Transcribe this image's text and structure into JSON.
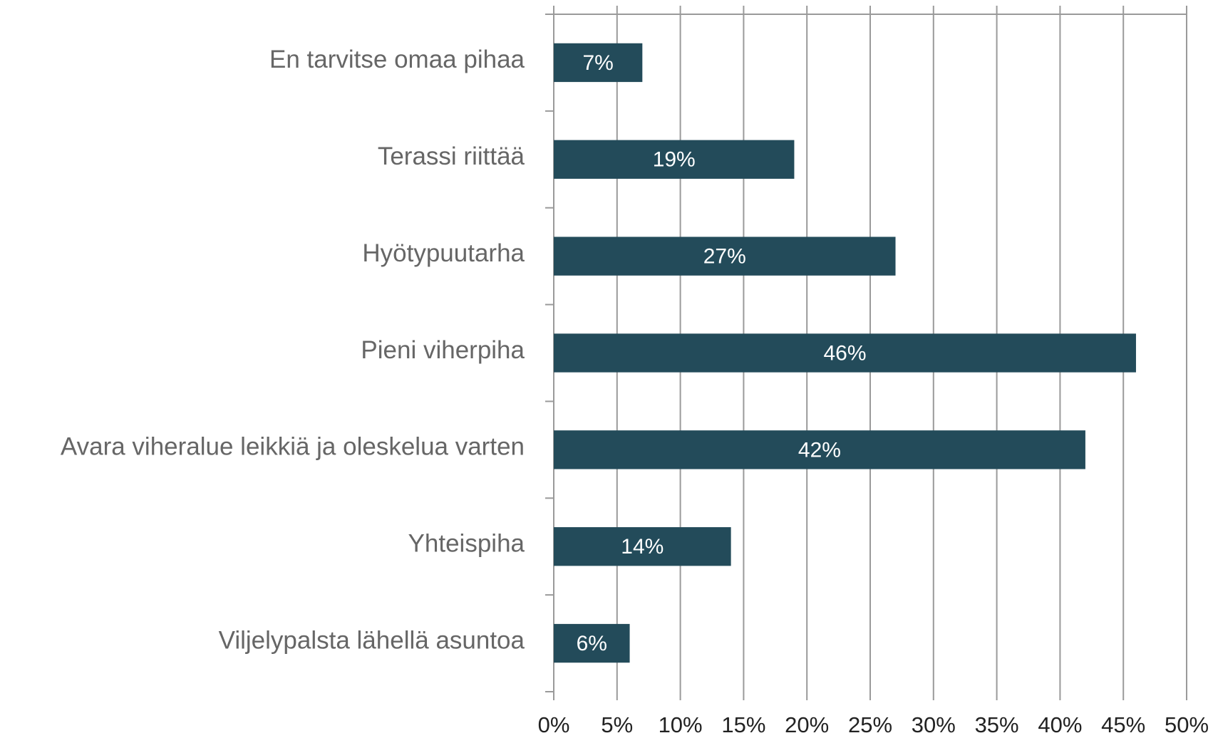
{
  "chart_data": {
    "type": "bar",
    "orientation": "horizontal",
    "categories": [
      "En tarvitse omaa pihaa",
      "Terassi riittää",
      "Hyötypuutarha",
      "Pieni viherpiha",
      "Avara viheralue leikkiä ja oleskelua varten",
      "Yhteispiha",
      "Viljelypalsta lähellä asuntoa"
    ],
    "values": [
      7,
      19,
      27,
      46,
      42,
      14,
      6
    ],
    "value_labels": [
      "7%",
      "19%",
      "27%",
      "46%",
      "42%",
      "14%",
      "6%"
    ],
    "color": "#234b5a",
    "xlim": [
      0,
      50
    ],
    "xticks": [
      {
        "value": 0,
        "label": "0%"
      },
      {
        "value": 5,
        "label": "5%"
      },
      {
        "value": 10,
        "label": "10%"
      },
      {
        "value": 15,
        "label": "15%"
      },
      {
        "value": 20,
        "label": "20%"
      },
      {
        "value": 25,
        "label": "25%"
      },
      {
        "value": 30,
        "label": "30%"
      },
      {
        "value": 35,
        "label": "35%"
      },
      {
        "value": 40,
        "label": "40%"
      },
      {
        "value": 45,
        "label": "45%"
      },
      {
        "value": 50,
        "label": "50%"
      }
    ],
    "grid": true
  }
}
